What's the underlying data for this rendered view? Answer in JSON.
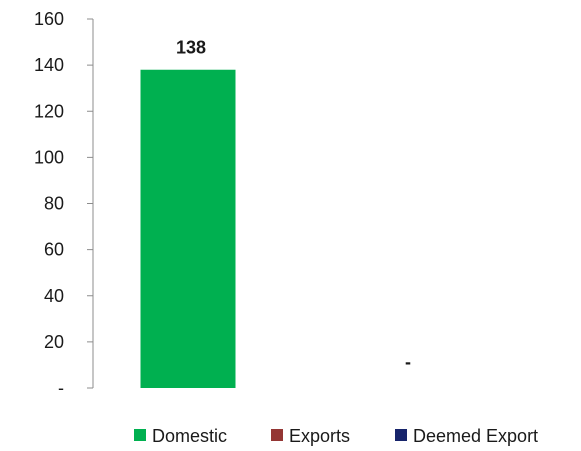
{
  "chart_data": {
    "type": "bar",
    "categories": [
      "Domestic",
      "Exports",
      "Deemed Export"
    ],
    "series": [
      {
        "name": "Domestic",
        "values": [
          138,
          null,
          null
        ],
        "color": "#00b050"
      },
      {
        "name": "Exports",
        "values": [
          null,
          0,
          null
        ],
        "color": "#943634"
      },
      {
        "name": "Deemed Export",
        "values": [
          null,
          null,
          0
        ],
        "color": "#17246b"
      }
    ],
    "data_labels": [
      "138",
      "-",
      "-"
    ],
    "y_ticks": [
      0,
      20,
      40,
      60,
      80,
      100,
      120,
      140,
      160
    ],
    "y_tick_labels": [
      "-",
      "20",
      "40",
      "60",
      "80",
      "100",
      "120",
      "140",
      "160"
    ],
    "ylim": [
      0,
      160
    ],
    "title": "",
    "xlabel": "",
    "ylabel": "",
    "grid": false,
    "legend_position": "bottom-right"
  }
}
